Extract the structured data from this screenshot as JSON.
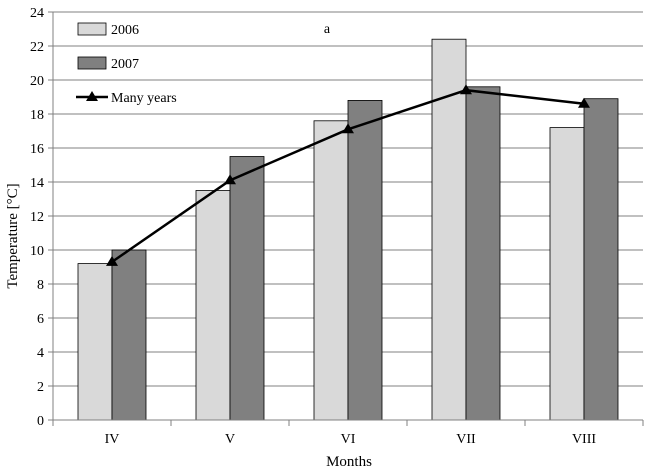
{
  "chart_data": {
    "type": "bar",
    "title": "a",
    "xlabel": "Months",
    "ylabel": "Temperature [°C]",
    "categories": [
      "IV",
      "V",
      "VI",
      "VII",
      "VIII"
    ],
    "ylim": [
      0,
      24
    ],
    "yticks": [
      0,
      2,
      4,
      6,
      8,
      10,
      12,
      14,
      16,
      18,
      20,
      22,
      24
    ],
    "grid": true,
    "legend_position": "top-left",
    "series": [
      {
        "name": "2006",
        "kind": "bar",
        "color": "#d9d9d9",
        "values": [
          9.2,
          13.5,
          17.6,
          22.4,
          17.2
        ]
      },
      {
        "name": "2007",
        "kind": "bar",
        "color": "#808080",
        "values": [
          10.0,
          15.5,
          18.8,
          19.6,
          18.9
        ]
      },
      {
        "name": "Many years",
        "kind": "line",
        "color": "#000000",
        "marker": "triangle",
        "values": [
          9.3,
          14.1,
          17.1,
          19.4,
          18.6
        ]
      }
    ]
  }
}
